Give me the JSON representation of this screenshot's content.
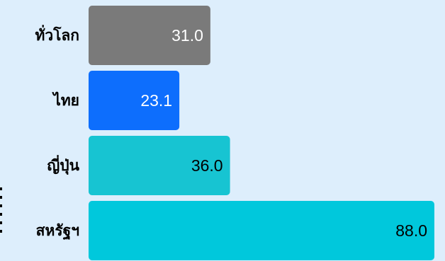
{
  "chart_data": {
    "type": "bar",
    "orientation": "horizontal",
    "categories": [
      "ทั่วโลก",
      "ไทย",
      "ญี่ปุ่น",
      "สหรัฐฯ"
    ],
    "values": [
      31.0,
      23.1,
      36.0,
      88.0
    ],
    "value_labels": [
      "31.0",
      "23.1",
      "36.0",
      "88.0"
    ],
    "bar_colors": [
      "#7a7a7a",
      "#0d6efd",
      "#17c4d2",
      "#00c8dc"
    ],
    "value_label_colors": [
      "#ffffff",
      "#ffffff",
      "#000000",
      "#000000"
    ],
    "xlim": [
      0,
      88
    ],
    "grid": false,
    "title": "",
    "xlabel": "",
    "ylabel": ""
  },
  "colors": {
    "background": "#ddeefc"
  }
}
